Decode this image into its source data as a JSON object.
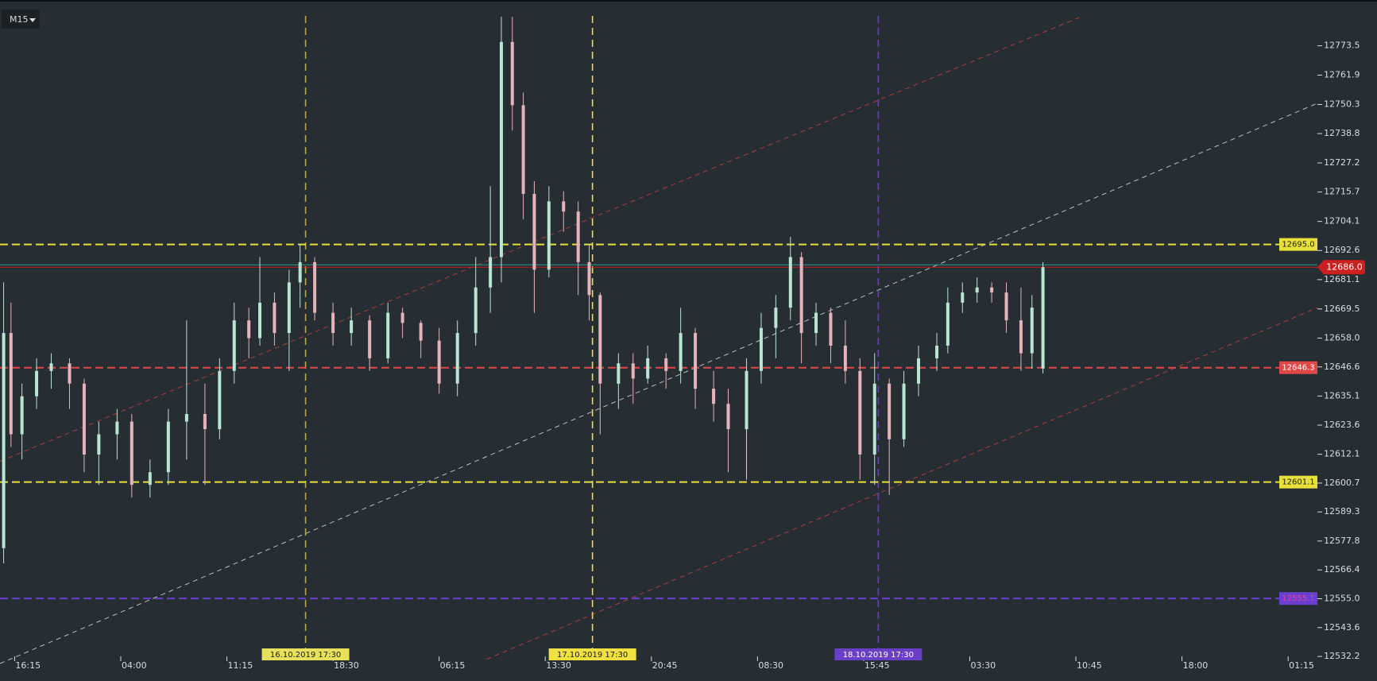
{
  "chart_data": {
    "type": "candlestick",
    "timeframe": "M15",
    "background": "#262d33",
    "up_color": "#b9e6d3",
    "down_color": "#e7b3ba",
    "xlim": [
      0,
      360
    ],
    "ylim": [
      12522.5,
      12785.3
    ],
    "xticks": [
      {
        "value": 4,
        "label": "16:15"
      },
      {
        "value": 33,
        "label": "04:00"
      },
      {
        "value": 62,
        "label": "11:15"
      },
      {
        "value": 91,
        "label": "18:30"
      },
      {
        "value": 120,
        "label": "06:15"
      },
      {
        "value": 149,
        "label": "13:30"
      },
      {
        "value": 178,
        "label": "20:45"
      },
      {
        "value": 207,
        "label": "08:30"
      },
      {
        "value": 236,
        "label": "15:45"
      },
      {
        "value": 265,
        "label": "03:30"
      },
      {
        "value": 294,
        "label": "10:45"
      },
      {
        "value": 323,
        "label": "18:00"
      },
      {
        "value": 352,
        "label": "01:15"
      }
    ],
    "yticks": [
      12773.5,
      12761.9,
      12750.3,
      12738.8,
      12727.2,
      12715.7,
      12704.1,
      12692.6,
      12681.1,
      12669.5,
      {
        "value": 12658,
        "label": "12658.0"
      },
      12646.6,
      12635.1,
      12623.6,
      12612.1,
      12600.7,
      12589.3,
      12577.8,
      12566.4,
      {
        "value": 12555,
        "label": "12555.0"
      },
      12543.6,
      12532.2
    ],
    "x": [
      1,
      3,
      6,
      10,
      14,
      19,
      23,
      27,
      32,
      36,
      41,
      46,
      51,
      56,
      60,
      64,
      68,
      71,
      75,
      79,
      82,
      86,
      91,
      96,
      101,
      106,
      110,
      115,
      120,
      125,
      130,
      134,
      137,
      140,
      143,
      146,
      150,
      154,
      158,
      161,
      164,
      169,
      173,
      177,
      182,
      186,
      190,
      195,
      199,
      204,
      208,
      212,
      216,
      219,
      223,
      227,
      231,
      235,
      239,
      243,
      247,
      251,
      256,
      259,
      263,
      267,
      271,
      275,
      279,
      282,
      285
    ],
    "open": [
      12575,
      12660,
      12620,
      12635,
      12645,
      12648,
      12640,
      12612,
      12620,
      12625,
      12600,
      12605,
      12625,
      12628,
      12622,
      12645,
      12665,
      12658,
      12672,
      12660,
      12680,
      12688,
      12668,
      12660,
      12665,
      12650,
      12668,
      12664,
      12657,
      12640,
      12660,
      12678,
      12690,
      12775,
      12750,
      12715,
      12685,
      12712,
      12708,
      12688,
      12675,
      12640,
      12648,
      12642,
      12650,
      12645,
      12660,
      12638,
      12632,
      12622,
      12645,
      12662,
      12670,
      12690,
      12660,
      12668,
      12655,
      12645,
      12612,
      12640,
      12618,
      12640,
      12650,
      12655,
      12672,
      12676,
      12678,
      12676,
      12665,
      12652,
      12646
    ],
    "high": [
      12680,
      12672,
      12640,
      12650,
      12652,
      12650,
      12642,
      12625,
      12630,
      12628,
      12610,
      12630,
      12665,
      12640,
      12650,
      12672,
      12670,
      12690,
      12676,
      12685,
      12695,
      12690,
      12672,
      12670,
      12667,
      12672,
      12670,
      12665,
      12662,
      12665,
      12690,
      12718,
      12785,
      12785,
      12755,
      12720,
      12718,
      12716,
      12712,
      12695,
      12676,
      12652,
      12652,
      12655,
      12652,
      12670,
      12662,
      12645,
      12638,
      12650,
      12668,
      12675,
      12698,
      12692,
      12672,
      12670,
      12665,
      12650,
      12652,
      12642,
      12645,
      12655,
      12660,
      12678,
      12680,
      12682,
      12680,
      12680,
      12678,
      12675,
      12688
    ],
    "low": [
      12569,
      12615,
      12610,
      12630,
      12638,
      12630,
      12605,
      12600,
      12610,
      12595,
      12595,
      12600,
      12610,
      12600,
      12618,
      12640,
      12650,
      12655,
      12655,
      12645,
      12670,
      12665,
      12655,
      12655,
      12645,
      12648,
      12658,
      12650,
      12636,
      12635,
      12655,
      12668,
      12680,
      12740,
      12705,
      12668,
      12682,
      12700,
      12675,
      12665,
      12620,
      12630,
      12632,
      12640,
      12638,
      12640,
      12630,
      12625,
      12605,
      12602,
      12640,
      12650,
      12665,
      12648,
      12655,
      12648,
      12640,
      12602,
      12600,
      12596,
      12615,
      12635,
      12645,
      12652,
      12668,
      12672,
      12672,
      12660,
      12645,
      12646,
      12644
    ],
    "close": [
      12660,
      12620,
      12635,
      12645,
      12648,
      12640,
      12612,
      12620,
      12625,
      12600,
      12605,
      12625,
      12628,
      12622,
      12645,
      12665,
      12658,
      12672,
      12660,
      12680,
      12688,
      12668,
      12660,
      12665,
      12650,
      12668,
      12664,
      12657,
      12640,
      12660,
      12678,
      12690,
      12775,
      12750,
      12715,
      12685,
      12712,
      12708,
      12688,
      12675,
      12640,
      12648,
      12642,
      12650,
      12645,
      12660,
      12638,
      12632,
      12622,
      12645,
      12662,
      12670,
      12690,
      12660,
      12668,
      12655,
      12645,
      12612,
      12640,
      12618,
      12640,
      12650,
      12655,
      12672,
      12676,
      12678,
      12676,
      12665,
      12652,
      12670,
      12686
    ],
    "hlines": [
      {
        "value": 12695,
        "label": "12695.0",
        "color": "#e8e03a",
        "label_text_color": "#1a1a1a"
      },
      {
        "value": 12646.3,
        "label": "12646.3",
        "color": "#e04848",
        "label_text_color": "#ffffff"
      },
      {
        "value": 12601.1,
        "label": "12601.1",
        "color": "#e8e03a",
        "label_text_color": "#1a1a1a"
      },
      {
        "value": 12555.1,
        "label": "12555.1",
        "color": "#6a3fd0",
        "label_text_color": "#e040a0"
      }
    ],
    "last_price": {
      "value": 12686,
      "label": "12686.0",
      "color": "#cc1f1f",
      "line_color": "#2a9d8f"
    },
    "vlines": [
      {
        "x": 83.5,
        "label": "16.10.2019 17:30",
        "color": "#b8a84a",
        "label_color": "#e8e05a"
      },
      {
        "x": 161.9,
        "label": "17.10.2019 17:30",
        "color": "#f0e040",
        "label_color": "#f0e040"
      },
      {
        "x": 240,
        "label": "18.10.2019 17:30",
        "color": "#6a3fd0",
        "label_color": "#6a3fc8"
      }
    ],
    "trendlines": [
      {
        "x": [
          0,
          296
        ],
        "y": [
          12609.3,
          12785.3
        ],
        "color": "#c94040"
      },
      {
        "x": [
          0,
          359.7
        ],
        "y": [
          12529.4,
          12750.6
        ],
        "color": "#d8d8d8"
      },
      {
        "x": [
          133,
          360
        ],
        "y": [
          12531.1,
          12670
        ],
        "color": "#c94040"
      }
    ]
  }
}
